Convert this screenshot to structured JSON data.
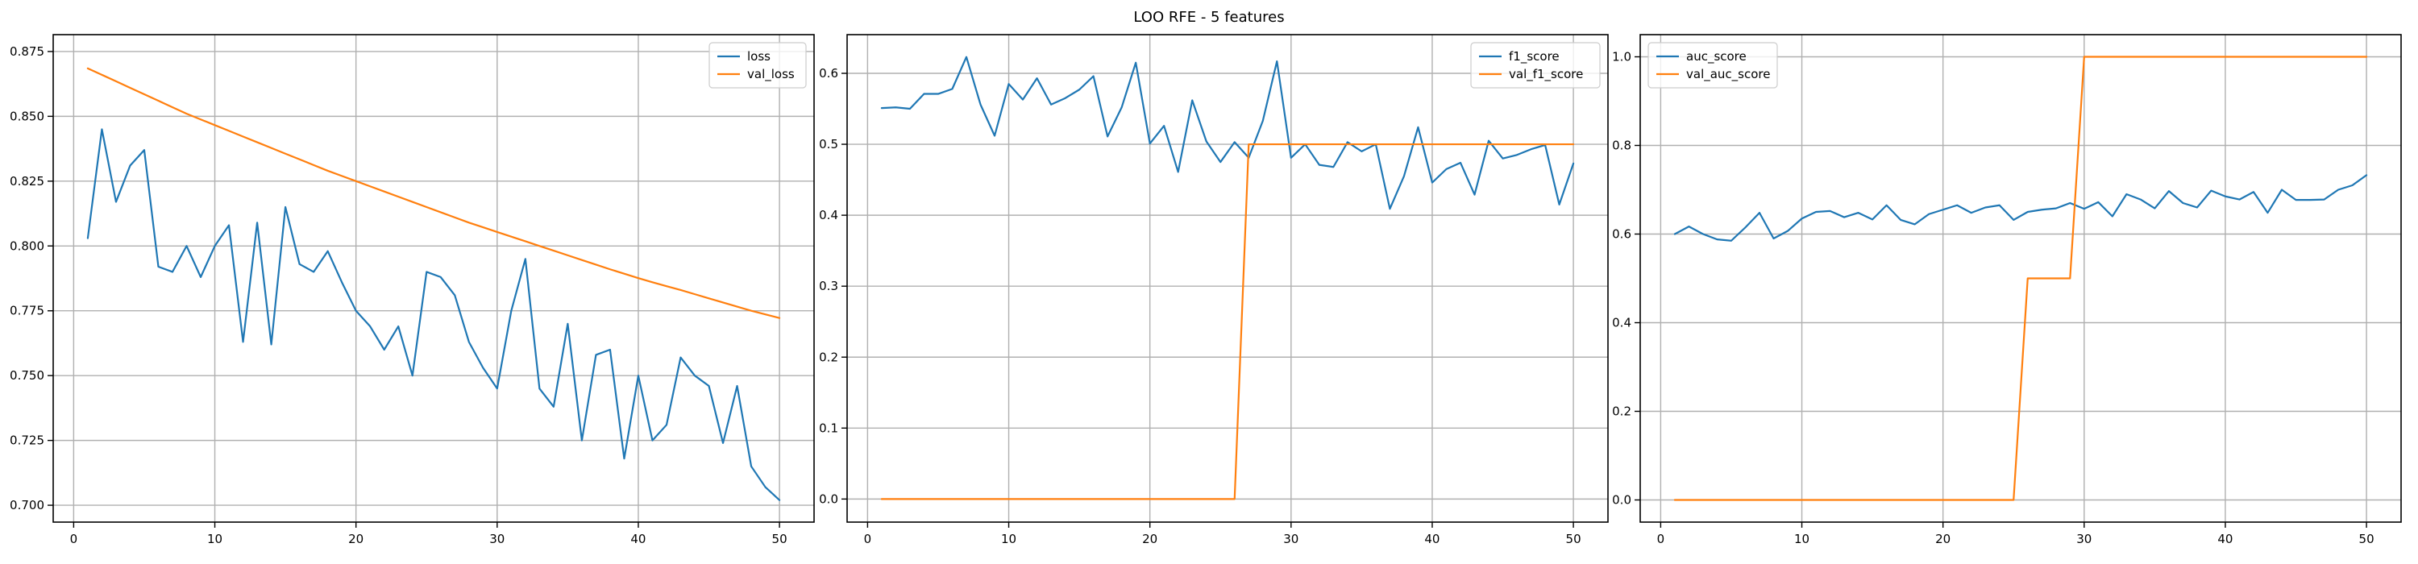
{
  "figure": {
    "title": "LOO RFE - 5 features"
  },
  "chart_data": [
    {
      "type": "line",
      "title": "",
      "xlabel": "",
      "ylabel": "",
      "xlim": [
        -1.45,
        52.45
      ],
      "ylim": [
        0.6935,
        0.8815
      ],
      "xticks": [
        0,
        10,
        20,
        30,
        40,
        50
      ],
      "yticks": [
        0.7,
        0.725,
        0.75,
        0.775,
        0.8,
        0.825,
        0.85,
        0.875
      ],
      "ytick_labels": [
        "0.700",
        "0.725",
        "0.750",
        "0.775",
        "0.800",
        "0.825",
        "0.850",
        "0.875"
      ],
      "grid": true,
      "legend": "upper right",
      "colors": [
        "#1f77b4",
        "#ff7f0e"
      ],
      "series": [
        {
          "name": "loss",
          "x": [
            1,
            2,
            3,
            4,
            5,
            6,
            7,
            8,
            9,
            10,
            11,
            12,
            13,
            14,
            15,
            16,
            17,
            18,
            19,
            20,
            21,
            22,
            23,
            24,
            25,
            26,
            27,
            28,
            29,
            30,
            31,
            32,
            33,
            34,
            35,
            36,
            37,
            38,
            39,
            40,
            41,
            42,
            43,
            44,
            45,
            46,
            47,
            48,
            49,
            50
          ],
          "values": [
            0.803,
            0.845,
            0.817,
            0.831,
            0.837,
            0.792,
            0.79,
            0.8,
            0.788,
            0.8,
            0.808,
            0.763,
            0.809,
            0.762,
            0.815,
            0.793,
            0.79,
            0.798,
            0.786,
            0.775,
            0.769,
            0.76,
            0.769,
            0.75,
            0.79,
            0.788,
            0.781,
            0.763,
            0.753,
            0.745,
            0.775,
            0.795,
            0.745,
            0.738,
            0.77,
            0.725,
            0.758,
            0.76,
            0.718,
            0.75,
            0.725,
            0.731,
            0.757,
            0.75,
            0.746,
            0.724,
            0.746,
            0.715,
            0.707,
            0.702
          ]
        },
        {
          "name": "val_loss",
          "x": [
            1,
            2,
            3,
            4,
            5,
            6,
            7,
            8,
            9,
            10,
            11,
            12,
            13,
            14,
            15,
            16,
            17,
            18,
            19,
            20,
            21,
            22,
            23,
            24,
            25,
            26,
            27,
            28,
            29,
            30,
            31,
            32,
            33,
            34,
            35,
            36,
            37,
            38,
            39,
            40,
            41,
            42,
            43,
            44,
            45,
            46,
            47,
            48,
            49,
            50
          ],
          "values": [
            0.8685,
            0.866,
            0.8635,
            0.861,
            0.8585,
            0.856,
            0.8535,
            0.851,
            0.8488,
            0.8466,
            0.8444,
            0.8422,
            0.84,
            0.8378,
            0.8356,
            0.8334,
            0.8312,
            0.829,
            0.827,
            0.825,
            0.823,
            0.821,
            0.819,
            0.817,
            0.815,
            0.813,
            0.811,
            0.809,
            0.8072,
            0.8054,
            0.8036,
            0.8018,
            0.8,
            0.7982,
            0.7964,
            0.7946,
            0.7928,
            0.791,
            0.7893,
            0.7876,
            0.786,
            0.7845,
            0.783,
            0.7814,
            0.7798,
            0.7782,
            0.7766,
            0.775,
            0.7736,
            0.7722
          ]
        }
      ]
    },
    {
      "type": "line",
      "title": "",
      "xlabel": "",
      "ylabel": "",
      "xlim": [
        -1.45,
        52.45
      ],
      "ylim": [
        -0.0325,
        0.6545
      ],
      "xticks": [
        0,
        10,
        20,
        30,
        40,
        50
      ],
      "yticks": [
        0.0,
        0.1,
        0.2,
        0.3,
        0.4,
        0.5,
        0.6
      ],
      "ytick_labels": [
        "0.0",
        "0.1",
        "0.2",
        "0.3",
        "0.4",
        "0.5",
        "0.6"
      ],
      "grid": true,
      "legend": "upper right",
      "colors": [
        "#1f77b4",
        "#ff7f0e"
      ],
      "series": [
        {
          "name": "f1_score",
          "x": [
            1,
            2,
            3,
            4,
            5,
            6,
            7,
            8,
            9,
            10,
            11,
            12,
            13,
            14,
            15,
            16,
            17,
            18,
            19,
            20,
            21,
            22,
            23,
            24,
            25,
            26,
            27,
            28,
            29,
            30,
            31,
            32,
            33,
            34,
            35,
            36,
            37,
            38,
            39,
            40,
            41,
            42,
            43,
            44,
            45,
            46,
            47,
            48,
            49,
            50
          ],
          "values": [
            0.551,
            0.552,
            0.55,
            0.571,
            0.571,
            0.578,
            0.623,
            0.556,
            0.512,
            0.585,
            0.563,
            0.593,
            0.556,
            0.565,
            0.577,
            0.596,
            0.511,
            0.552,
            0.615,
            0.501,
            0.526,
            0.461,
            0.562,
            0.504,
            0.475,
            0.503,
            0.481,
            0.533,
            0.617,
            0.481,
            0.5,
            0.471,
            0.468,
            0.503,
            0.49,
            0.5,
            0.409,
            0.455,
            0.524,
            0.446,
            0.465,
            0.474,
            0.429,
            0.505,
            0.48,
            0.485,
            0.493,
            0.499,
            0.415,
            0.473
          ]
        },
        {
          "name": "val_f1_score",
          "x": [
            1,
            2,
            3,
            4,
            5,
            6,
            7,
            8,
            9,
            10,
            11,
            12,
            13,
            14,
            15,
            16,
            17,
            18,
            19,
            20,
            21,
            22,
            23,
            24,
            25,
            26,
            27,
            28,
            29,
            30,
            31,
            32,
            33,
            34,
            35,
            36,
            37,
            38,
            39,
            40,
            41,
            42,
            43,
            44,
            45,
            46,
            47,
            48,
            49,
            50
          ],
          "values": [
            0,
            0,
            0,
            0,
            0,
            0,
            0,
            0,
            0,
            0,
            0,
            0,
            0,
            0,
            0,
            0,
            0,
            0,
            0,
            0,
            0,
            0,
            0,
            0,
            0,
            0,
            0.5,
            0.5,
            0.5,
            0.5,
            0.5,
            0.5,
            0.5,
            0.5,
            0.5,
            0.5,
            0.5,
            0.5,
            0.5,
            0.5,
            0.5,
            0.5,
            0.5,
            0.5,
            0.5,
            0.5,
            0.5,
            0.5,
            0.5,
            0.5
          ]
        }
      ]
    },
    {
      "type": "line",
      "title": "",
      "xlabel": "",
      "ylabel": "",
      "xlim": [
        -1.45,
        52.45
      ],
      "ylim": [
        -0.05,
        1.05
      ],
      "xticks": [
        0,
        10,
        20,
        30,
        40,
        50
      ],
      "yticks": [
        0.0,
        0.2,
        0.4,
        0.6,
        0.8,
        1.0
      ],
      "ytick_labels": [
        "0.0",
        "0.2",
        "0.4",
        "0.6",
        "0.8",
        "1.0"
      ],
      "grid": true,
      "legend": "upper left",
      "colors": [
        "#1f77b4",
        "#ff7f0e"
      ],
      "series": [
        {
          "name": "auc_score",
          "x": [
            1,
            2,
            3,
            4,
            5,
            6,
            7,
            8,
            9,
            10,
            11,
            12,
            13,
            14,
            15,
            16,
            17,
            18,
            19,
            20,
            21,
            22,
            23,
            24,
            25,
            26,
            27,
            28,
            29,
            30,
            31,
            32,
            33,
            34,
            35,
            36,
            37,
            38,
            39,
            40,
            41,
            42,
            43,
            44,
            45,
            46,
            47,
            48,
            49,
            50
          ],
          "values": [
            0.6,
            0.617,
            0.6,
            0.588,
            0.585,
            0.615,
            0.648,
            0.59,
            0.607,
            0.635,
            0.65,
            0.652,
            0.638,
            0.648,
            0.633,
            0.665,
            0.632,
            0.622,
            0.645,
            0.655,
            0.665,
            0.648,
            0.66,
            0.665,
            0.632,
            0.65,
            0.655,
            0.658,
            0.67,
            0.657,
            0.672,
            0.64,
            0.69,
            0.678,
            0.658,
            0.697,
            0.67,
            0.66,
            0.698,
            0.685,
            0.678,
            0.695,
            0.648,
            0.7,
            0.677,
            0.677,
            0.678,
            0.7,
            0.71,
            0.733
          ]
        },
        {
          "name": "val_auc_score",
          "x": [
            1,
            2,
            3,
            4,
            5,
            6,
            7,
            8,
            9,
            10,
            11,
            12,
            13,
            14,
            15,
            16,
            17,
            18,
            19,
            20,
            21,
            22,
            23,
            24,
            25,
            26,
            27,
            28,
            29,
            30,
            31,
            32,
            33,
            34,
            35,
            36,
            37,
            38,
            39,
            40,
            41,
            42,
            43,
            44,
            45,
            46,
            47,
            48,
            49,
            50
          ],
          "values": [
            0,
            0,
            0,
            0,
            0,
            0,
            0,
            0,
            0,
            0,
            0,
            0,
            0,
            0,
            0,
            0,
            0,
            0,
            0,
            0,
            0,
            0,
            0,
            0,
            0,
            0.5,
            0.5,
            0.5,
            0.5,
            1,
            1,
            1,
            1,
            1,
            1,
            1,
            1,
            1,
            1,
            1,
            1,
            1,
            1,
            1,
            1,
            1,
            1,
            1,
            1,
            1
          ]
        }
      ]
    }
  ]
}
